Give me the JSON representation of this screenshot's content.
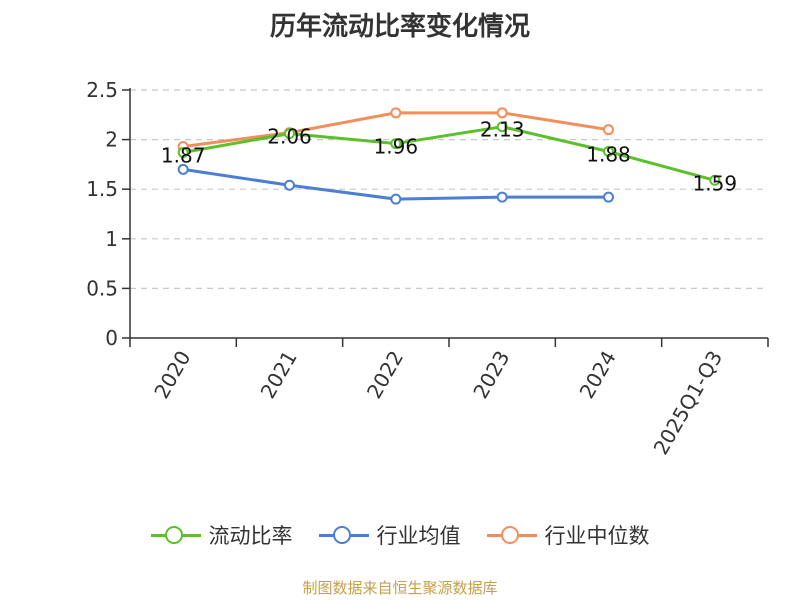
{
  "title": "历年流动比率变化情况",
  "footer": "制图数据来自恒生聚源数据库",
  "chart_data": {
    "type": "line",
    "categories": [
      "2020",
      "2021",
      "2022",
      "2023",
      "2024",
      "2025Q1-Q3"
    ],
    "ylim": [
      0,
      2.5
    ],
    "yticks": [
      "0",
      "0.5",
      "1",
      "1.5",
      "2",
      "2.5"
    ],
    "ytick_values": [
      0,
      0.5,
      1,
      1.5,
      2,
      2.5
    ],
    "grid": true,
    "legend_position": "bottom",
    "series": [
      {
        "name": "流动比率",
        "color": "#5cc02a",
        "values": [
          1.87,
          2.06,
          1.96,
          2.13,
          1.88,
          1.59
        ],
        "labels": [
          "1.87",
          "2.06",
          "1.96",
          "2.13",
          "1.88",
          "1.59"
        ]
      },
      {
        "name": "行业均值",
        "color": "#4a7fd4",
        "values": [
          1.7,
          1.54,
          1.4,
          1.42,
          1.42,
          null
        ]
      },
      {
        "name": "行业中位数",
        "color": "#f28e5c",
        "values": [
          1.93,
          2.07,
          2.27,
          2.27,
          2.1,
          null
        ]
      }
    ]
  }
}
